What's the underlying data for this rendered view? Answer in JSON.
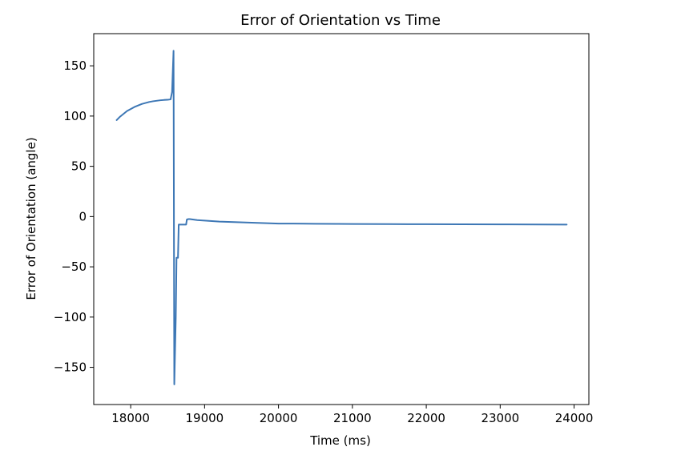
{
  "chart_data": {
    "type": "line",
    "title": "Error of Orientation vs Time",
    "xlabel": "Time (ms)",
    "ylabel": "Error of Orientation (angle)",
    "xlim": [
      17500,
      24200
    ],
    "ylim": [
      -187,
      182
    ],
    "x_ticks": [
      18000,
      19000,
      20000,
      21000,
      22000,
      23000,
      24000
    ],
    "x_tick_labels": [
      "18000",
      "19000",
      "20000",
      "21000",
      "22000",
      "23000",
      "24000"
    ],
    "y_ticks": [
      150,
      100,
      50,
      0,
      -50,
      -100,
      -150
    ],
    "y_tick_labels": [
      "150",
      "100",
      "50",
      "0",
      "−50",
      "−100",
      "−150"
    ],
    "grid": false,
    "color": "#3d77b5",
    "series": [
      {
        "x": [
          17810,
          17850,
          17900,
          17950,
          18000,
          18050,
          18100,
          18150,
          18200,
          18250,
          18300,
          18350,
          18400,
          18450,
          18500,
          18540,
          18560,
          18580,
          18590,
          18610,
          18620,
          18640,
          18650,
          18660,
          18680,
          18700,
          18720,
          18750,
          18760,
          18780,
          18800,
          18850,
          18900,
          19000,
          19100,
          19200,
          19400,
          19600,
          19800,
          20000,
          20200,
          20500,
          20800,
          21000,
          21500,
          22000,
          22500,
          23000,
          23500,
          23900
        ],
        "y": [
          96,
          99,
          102,
          105,
          107,
          109,
          110.5,
          112,
          113,
          114,
          114.7,
          115.2,
          115.7,
          116,
          116.2,
          116.6,
          124,
          165,
          -167,
          -100,
          -41,
          -41,
          -8,
          -8,
          -8,
          -8,
          -8,
          -8,
          -3,
          -2.5,
          -2.5,
          -3,
          -3.5,
          -4,
          -4.5,
          -5,
          -5.5,
          -6,
          -6.5,
          -7,
          -7,
          -7.2,
          -7.3,
          -7.4,
          -7.5,
          -7.6,
          -7.7,
          -7.8,
          -7.9,
          -8
        ]
      }
    ]
  }
}
